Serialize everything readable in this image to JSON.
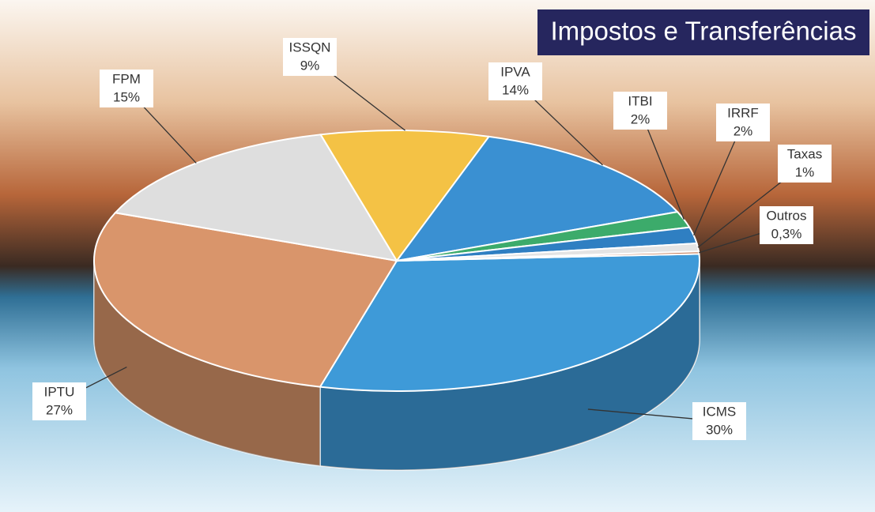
{
  "chart_data": {
    "type": "pie",
    "title": "Impostos e Transferências",
    "categories": [
      "ICMS",
      "IPTU",
      "FPM",
      "ISSQN",
      "IPVA",
      "ITBI",
      "IRRF",
      "Taxas",
      "Outros"
    ],
    "values": [
      30,
      27,
      15,
      9,
      14,
      2,
      2,
      1,
      0.3
    ],
    "value_labels": [
      "30%",
      "27%",
      "15%",
      "9%",
      "14%",
      "2%",
      "2%",
      "1%",
      "0,3%"
    ],
    "colors": [
      "#3e9ad8",
      "#d9956b",
      "#dedede",
      "#f4c245",
      "#3a90d2",
      "#3cab6b",
      "#2f7fc2",
      "#e4e4e4",
      "#c0714a"
    ]
  }
}
